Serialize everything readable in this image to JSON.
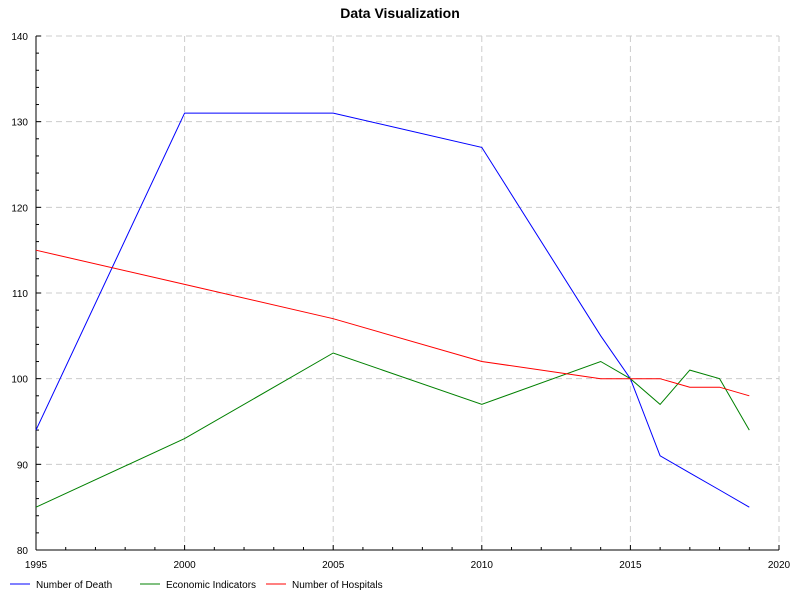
{
  "chart_data": {
    "type": "line",
    "title": "Data Visualization",
    "xlabel": "",
    "ylabel": "",
    "xlim": [
      1995,
      2020
    ],
    "ylim": [
      80,
      140
    ],
    "x_ticks": [
      1995,
      2000,
      2005,
      2010,
      2015,
      2020
    ],
    "y_ticks": [
      80,
      90,
      100,
      110,
      120,
      130,
      140
    ],
    "grid": true,
    "legend_position": "bottom-left",
    "series": [
      {
        "name": "Number of Death",
        "color": "#0000ff",
        "x": [
          1995,
          2000,
          2005,
          2010,
          2014,
          2015,
          2016,
          2017,
          2018,
          2019
        ],
        "y": [
          94,
          131,
          131,
          127,
          105,
          100,
          91,
          89,
          87,
          85
        ]
      },
      {
        "name": "Economic Indicators",
        "color": "#008000",
        "x": [
          1995,
          2000,
          2005,
          2010,
          2014,
          2015,
          2016,
          2017,
          2018,
          2019
        ],
        "y": [
          85,
          93,
          103,
          97,
          102,
          100,
          97,
          101,
          100,
          94
        ]
      },
      {
        "name": "Number of Hospitals",
        "color": "#ff0000",
        "x": [
          1995,
          2000,
          2005,
          2010,
          2014,
          2015,
          2016,
          2017,
          2018,
          2019
        ],
        "y": [
          115,
          111,
          107,
          102,
          100,
          100,
          100,
          99,
          99,
          98
        ]
      }
    ]
  }
}
